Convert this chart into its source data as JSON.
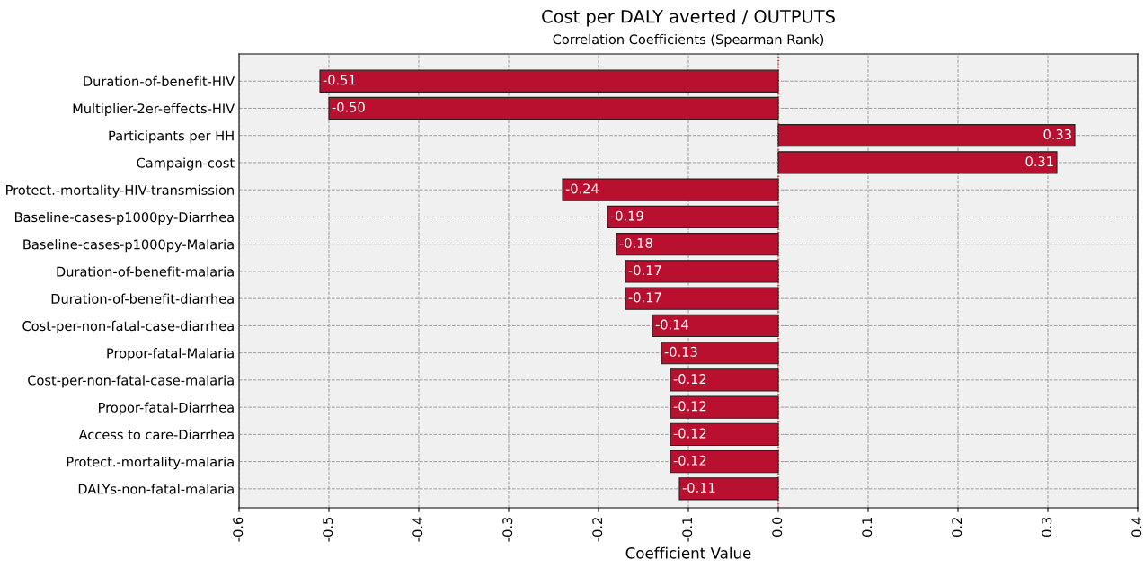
{
  "chart_data": {
    "type": "bar",
    "orientation": "horizontal",
    "title": "Cost per DALY averted / OUTPUTS",
    "subtitle": "Correlation Coefficients (Spearman Rank)",
    "xlabel": "Coefficient Value",
    "categories": [
      "Duration-of-benefit-HIV",
      "Multiplier-2er-effects-HIV",
      "Participants per HH",
      "Campaign-cost",
      "Protect.-mortality-HIV-transmission",
      "Baseline-cases-p1000py-Diarrhea",
      "Baseline-cases-p1000py-Malaria",
      "Duration-of-benefit-malaria",
      "Duration-of-benefit-diarrhea",
      "Cost-per-non-fatal-case-diarrhea",
      "Propor-fatal-Malaria",
      "Cost-per-non-fatal-case-malaria",
      "Propor-fatal-Diarrhea",
      "Access to care-Diarrhea",
      "Protect.-mortality-malaria",
      "DALYs-non-fatal-malaria"
    ],
    "values": [
      -0.51,
      -0.5,
      0.33,
      0.31,
      -0.24,
      -0.19,
      -0.18,
      -0.17,
      -0.17,
      -0.14,
      -0.13,
      -0.12,
      -0.12,
      -0.12,
      -0.12,
      -0.11
    ],
    "color": "#b8102e",
    "value_labels": [
      "-0.51",
      "-0.50",
      "0.33",
      "0.31",
      "-0.24",
      "-0.19",
      "-0.18",
      "-0.17",
      "-0.17",
      "-0.14",
      "-0.13",
      "-0.12",
      "-0.12",
      "-0.12",
      "-0.12",
      "-0.11"
    ],
    "xlim": [
      -0.6,
      0.4
    ],
    "xticks": [
      {
        "value": -0.6,
        "label": "-0.6"
      },
      {
        "value": -0.5,
        "label": "-0.5"
      },
      {
        "value": -0.4,
        "label": "-0.4"
      },
      {
        "value": -0.3,
        "label": "-0.3"
      },
      {
        "value": -0.2,
        "label": "-0.2"
      },
      {
        "value": -0.1,
        "label": "-0.1"
      },
      {
        "value": 0,
        "label": "0.0"
      },
      {
        "value": 0.1,
        "label": "0.1"
      },
      {
        "value": 0.2,
        "label": "0.2"
      },
      {
        "value": 0.3,
        "label": "0.3"
      },
      {
        "value": 0.4,
        "label": "0.4"
      }
    ],
    "ref_lines": [
      {
        "axis": "x",
        "value": 0,
        "color": "#ff0000",
        "line_style": "dotted"
      }
    ],
    "grid": true,
    "line_style": "dashed"
  }
}
